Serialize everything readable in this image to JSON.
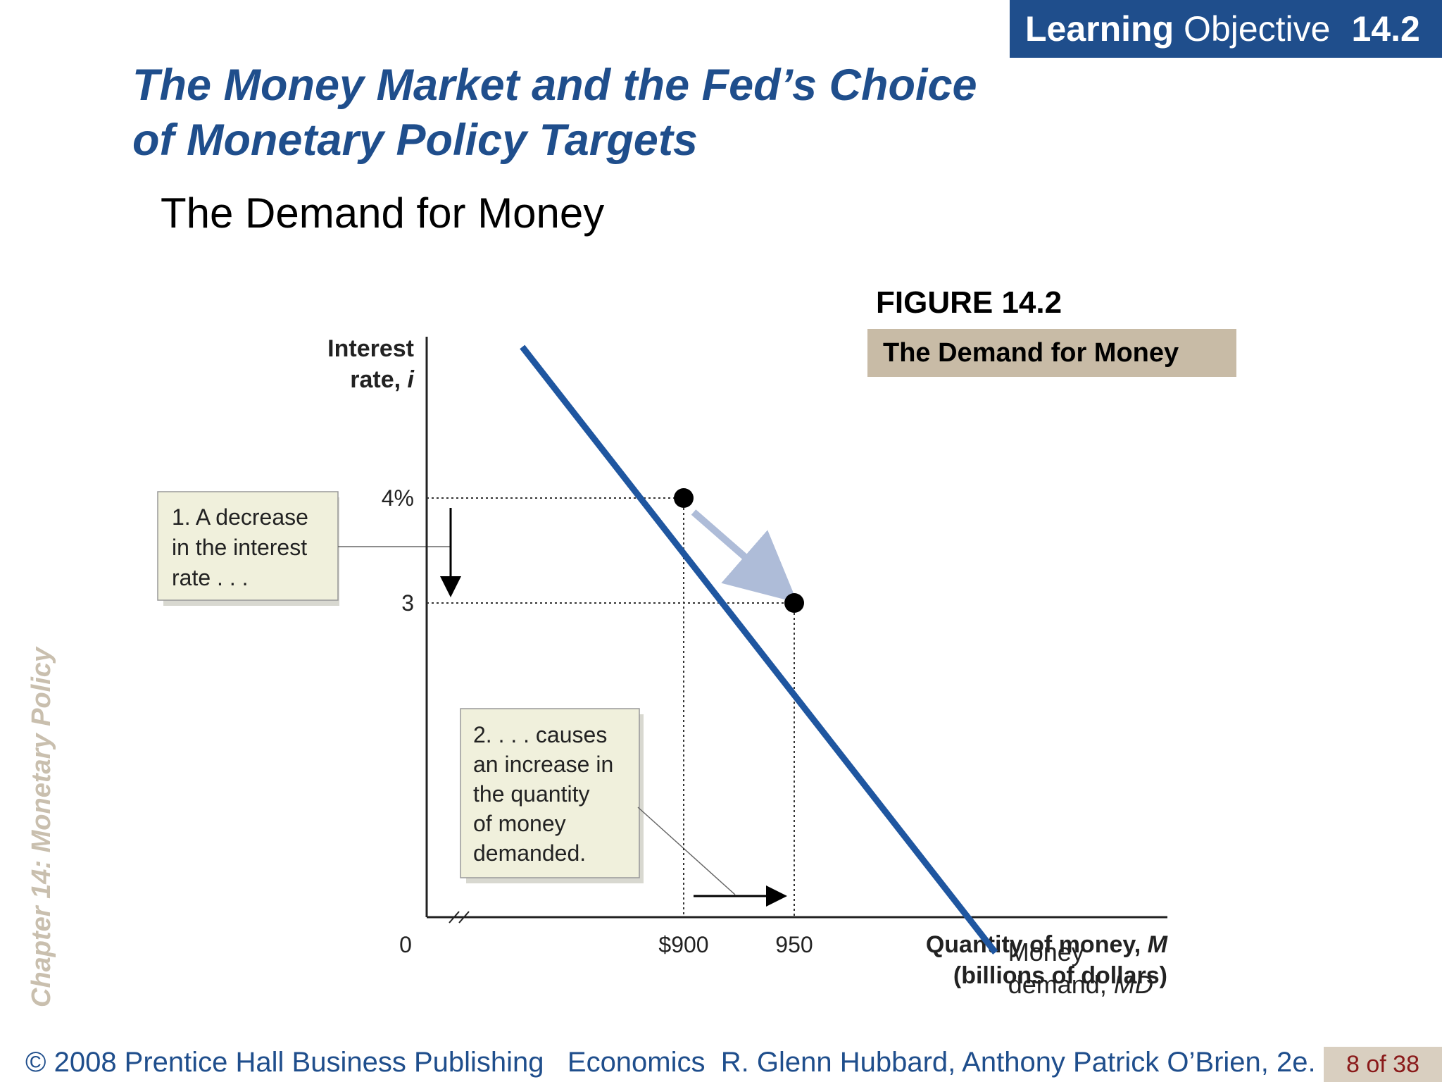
{
  "header": {
    "badge_bold": "Learning",
    "badge_text": "Objective",
    "badge_number": "14.2",
    "title_line1": "The Money Market and the Fed’s Choice",
    "title_line2": "of Monetary Policy Targets",
    "subtitle": "The Demand for Money"
  },
  "side_label": "Chapter 14:  Monetary Policy",
  "figure": {
    "number": "FIGURE 14.2",
    "caption": "The Demand for Money",
    "callout1": [
      "1. A decrease",
      "in the interest",
      "rate . . ."
    ],
    "callout2": [
      "2. . . . causes",
      "an increase in",
      "the quantity",
      "of money",
      "demanded."
    ]
  },
  "chart_data": {
    "type": "line",
    "ylabel_line1": "Interest",
    "ylabel_line2": "rate, ",
    "ylabel_var": "i",
    "xlabel_line1": "Quantity of money, ",
    "xlabel_var": "M",
    "xlabel_line2": "(billions of dollars)",
    "origin_label": "0",
    "x_ticks": [
      {
        "value": 900,
        "label": "$900"
      },
      {
        "value": 950,
        "label": "950"
      }
    ],
    "y_ticks": [
      {
        "value": 4,
        "label": "4%"
      },
      {
        "value": 3,
        "label": "3"
      }
    ],
    "series": [
      {
        "label_line1": "Money",
        "label_line2": "demand, ",
        "label_var": "MD",
        "color": "#1f56a0",
        "points": [
          {
            "x": 827,
            "y": 5.44
          },
          {
            "x": 1041,
            "y": -0.33
          }
        ]
      }
    ],
    "highlighted_points": [
      {
        "x": 900,
        "y": 4
      },
      {
        "x": 950,
        "y": 3
      }
    ],
    "grid": false
  },
  "footer": {
    "credit": "© 2008 Prentice Hall Business Publishing   Economics  R. Glenn Hubbard, Anthony Patrick O’Brien, 2e.",
    "page": "8 of 38"
  }
}
